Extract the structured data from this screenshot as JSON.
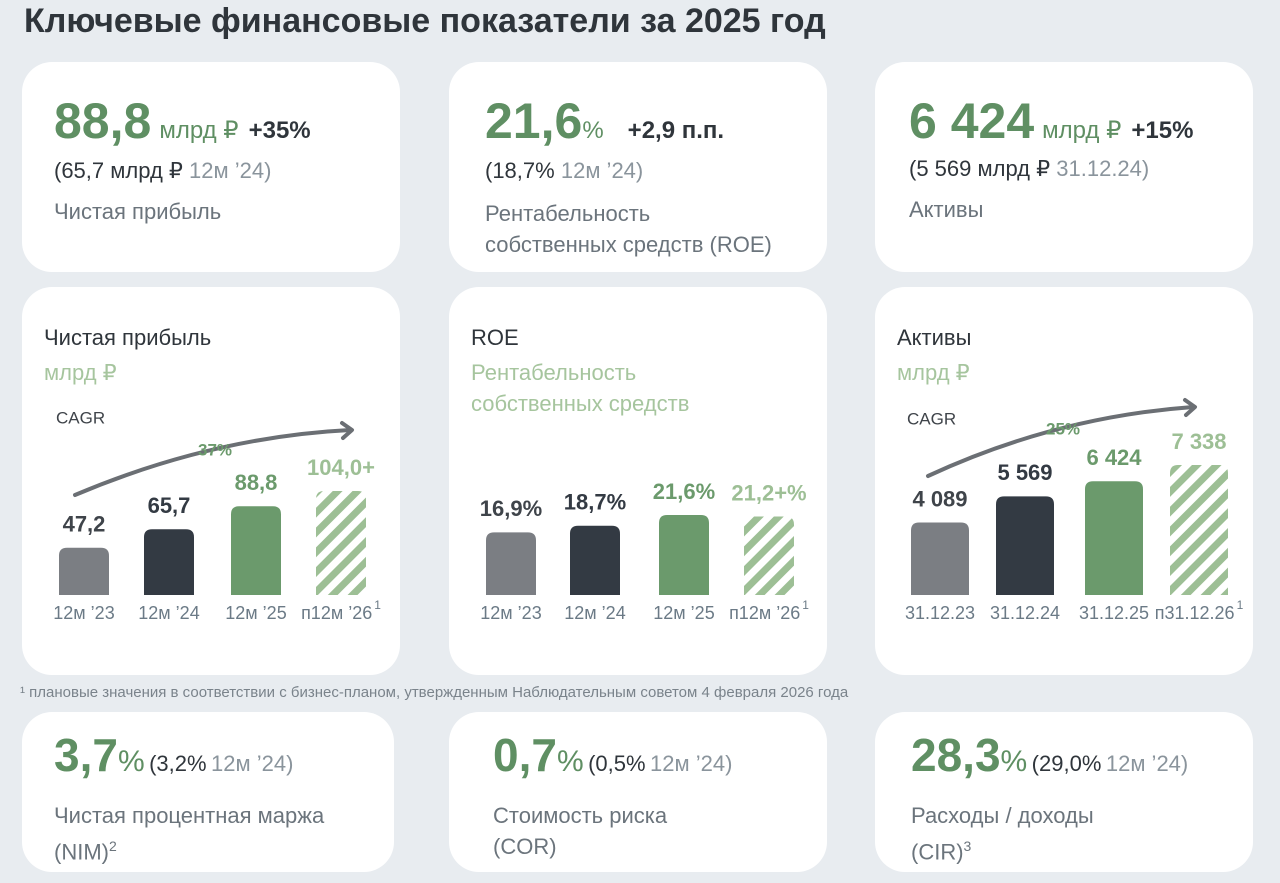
{
  "title": "Ключевые финансовые показатели за 2025 год",
  "kpi_cards": [
    {
      "value": "88,8",
      "unit": "млрд ₽",
      "change": "+35%",
      "prev": "(65,7 млрд ₽",
      "prev_period": "12м ’24)",
      "label": "Чистая прибыль"
    },
    {
      "value": "21,6",
      "unit": "%",
      "change": "+2,9 п.п.",
      "prev": "(18,7%",
      "prev_period": "12м ’24)",
      "label": "Рентабельность собственных средств (ROE)"
    },
    {
      "value": "6 424",
      "unit": "млрд ₽",
      "change": "+15%",
      "prev": "(5 569 млрд ₽",
      "prev_period": "31.12.24)",
      "label": "Активы"
    }
  ],
  "chart_data": [
    {
      "type": "bar",
      "title": "Чистая прибыль",
      "subtitle": "млрд ₽",
      "categories": [
        "12м ’23",
        "12м ’24",
        "12м ’25",
        "п12м ’26"
      ],
      "category_notes": [
        null,
        null,
        null,
        "1"
      ],
      "values": [
        47.2,
        65.7,
        88.8,
        104.0
      ],
      "value_labels": [
        "47,2",
        "65,7",
        "88,8",
        "104,0+"
      ],
      "colors": [
        "#7b7e83",
        "#333a43",
        "#6b9a6c",
        "#9dbf95"
      ],
      "label_colors": [
        "#3f444a",
        "#333a43",
        "#6b9a6c",
        "#9dbf95"
      ],
      "hatched": [
        false,
        false,
        false,
        true
      ],
      "cagr_label": "CAGR",
      "cagr": "37%"
    },
    {
      "type": "bar",
      "title": "ROE",
      "subtitle": "Рентабельность собственных средств",
      "categories": [
        "12м ’23",
        "12м ’24",
        "12м ’25",
        "п12м ’26"
      ],
      "category_notes": [
        null,
        null,
        null,
        "1"
      ],
      "values": [
        16.9,
        18.7,
        21.6,
        21.2
      ],
      "value_labels": [
        "16,9%",
        "18,7%",
        "21,6%",
        "21,2+%"
      ],
      "colors": [
        "#7b7e83",
        "#333a43",
        "#6b9a6c",
        "#9dbf95"
      ],
      "label_colors": [
        "#3f444a",
        "#333a43",
        "#6b9a6c",
        "#9dbf95"
      ],
      "hatched": [
        false,
        false,
        false,
        true
      ]
    },
    {
      "type": "bar",
      "title": "Активы",
      "subtitle": "млрд ₽",
      "categories": [
        "31.12.23",
        "31.12.24",
        "31.12.25",
        "п31.12.26"
      ],
      "category_notes": [
        null,
        null,
        null,
        "1"
      ],
      "values": [
        4089,
        5569,
        6424,
        7338
      ],
      "value_labels": [
        "4 089",
        "5 569",
        "6 424",
        "7 338"
      ],
      "colors": [
        "#7b7e83",
        "#333a43",
        "#6b9a6c",
        "#9dbf95"
      ],
      "label_colors": [
        "#3f444a",
        "#333a43",
        "#6b9a6c",
        "#9dbf95"
      ],
      "hatched": [
        false,
        false,
        false,
        true
      ],
      "cagr_label": "CAGR",
      "cagr": "25%"
    }
  ],
  "footnote": "¹ плановые значения в соответствии с бизнес-планом, утвержденным Наблюдательным советом 4 февраля 2026 года",
  "bottom_cards": [
    {
      "value": "3,7",
      "unit": "%",
      "prev": "(3,2%",
      "prev_period": "12м ’24)",
      "label": "Чистая процентная маржа (NIM)",
      "label_note": "2"
    },
    {
      "value": "0,7",
      "unit": "%",
      "prev": "(0,5%",
      "prev_period": "12м ’24)",
      "label": "Стоимость риска (COR)"
    },
    {
      "value": "28,3",
      "unit": "%",
      "prev": "(29,0%",
      "prev_period": "12м ’24)",
      "label": "Расходы / доходы (CIR)",
      "label_note": "3"
    }
  ]
}
